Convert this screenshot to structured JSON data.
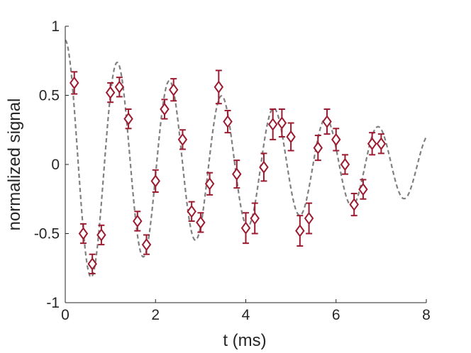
{
  "chart_data": {
    "type": "scatter",
    "xlabel": "t (ms)",
    "ylabel": "normalized signal",
    "xlim": [
      0,
      8
    ],
    "ylim": [
      -1,
      1
    ],
    "xticks": [
      0,
      2,
      4,
      6,
      8
    ],
    "yticks": [
      -1,
      -0.5,
      0,
      0.5,
      1
    ],
    "xtick_labels": [
      "0",
      "2",
      "4",
      "6",
      "8"
    ],
    "ytick_labels": [
      "-1",
      "-0.5",
      "0",
      "0.5",
      "1"
    ],
    "grid": false,
    "legend": "none",
    "series": [
      {
        "kind": "points-with-errorbars",
        "marker": "diamond",
        "color": "#9b1b30",
        "points": [
          {
            "x": 0.2,
            "y": 0.59,
            "err": 0.08
          },
          {
            "x": 0.4,
            "y": -0.5,
            "err": 0.07
          },
          {
            "x": 0.6,
            "y": -0.72,
            "err": 0.07
          },
          {
            "x": 0.8,
            "y": -0.51,
            "err": 0.07
          },
          {
            "x": 1.0,
            "y": 0.52,
            "err": 0.07
          },
          {
            "x": 1.2,
            "y": 0.56,
            "err": 0.07
          },
          {
            "x": 1.4,
            "y": 0.33,
            "err": 0.07
          },
          {
            "x": 1.6,
            "y": -0.41,
            "err": 0.07
          },
          {
            "x": 1.8,
            "y": -0.58,
            "err": 0.07
          },
          {
            "x": 2.0,
            "y": -0.12,
            "err": 0.08
          },
          {
            "x": 2.2,
            "y": 0.4,
            "err": 0.07
          },
          {
            "x": 2.4,
            "y": 0.54,
            "err": 0.08
          },
          {
            "x": 2.6,
            "y": 0.18,
            "err": 0.07
          },
          {
            "x": 2.8,
            "y": -0.34,
            "err": 0.07
          },
          {
            "x": 3.0,
            "y": -0.42,
            "err": 0.07
          },
          {
            "x": 3.2,
            "y": -0.14,
            "err": 0.08
          },
          {
            "x": 3.4,
            "y": 0.56,
            "err": 0.12
          },
          {
            "x": 3.6,
            "y": 0.31,
            "err": 0.08
          },
          {
            "x": 3.8,
            "y": -0.07,
            "err": 0.1
          },
          {
            "x": 4.0,
            "y": -0.46,
            "err": 0.11
          },
          {
            "x": 4.2,
            "y": -0.39,
            "err": 0.11
          },
          {
            "x": 4.4,
            "y": -0.02,
            "err": 0.1
          },
          {
            "x": 4.6,
            "y": 0.29,
            "err": 0.11
          },
          {
            "x": 4.8,
            "y": 0.3,
            "err": 0.1
          },
          {
            "x": 5.0,
            "y": 0.2,
            "err": 0.1
          },
          {
            "x": 5.2,
            "y": -0.48,
            "err": 0.11
          },
          {
            "x": 5.4,
            "y": -0.39,
            "err": 0.11
          },
          {
            "x": 5.6,
            "y": 0.12,
            "err": 0.09
          },
          {
            "x": 5.8,
            "y": 0.31,
            "err": 0.09
          },
          {
            "x": 6.0,
            "y": 0.18,
            "err": 0.08
          },
          {
            "x": 6.2,
            "y": 0.0,
            "err": 0.07
          },
          {
            "x": 6.4,
            "y": -0.29,
            "err": 0.08
          },
          {
            "x": 6.6,
            "y": -0.18,
            "err": 0.07
          },
          {
            "x": 6.8,
            "y": 0.15,
            "err": 0.08
          },
          {
            "x": 7.0,
            "y": 0.15,
            "err": 0.07
          }
        ]
      },
      {
        "kind": "fit-line",
        "style": "dashed",
        "color": "#808080",
        "model": "damped-cosine",
        "params": {
          "amplitude": 0.9,
          "offset": 0.0,
          "frequency_per_ms": 0.865,
          "decay_ms": 5.82
        }
      }
    ]
  }
}
